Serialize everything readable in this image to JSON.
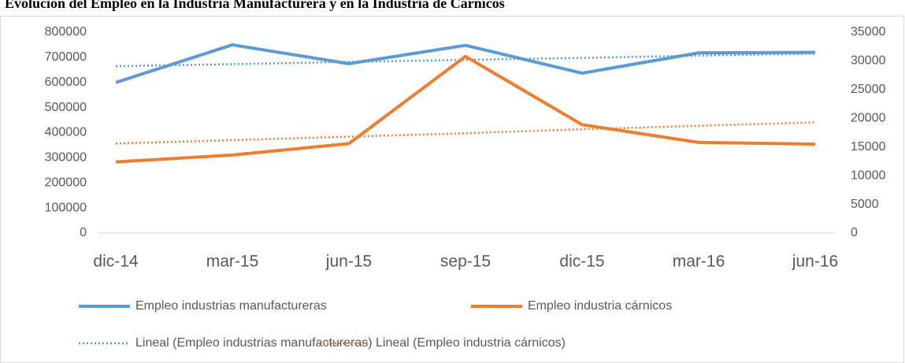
{
  "chart_data": {
    "type": "line",
    "title": "Evolución del Empleo en la Industria Manufacturera y en la Industria de Cárnicos",
    "categories": [
      "dic-14",
      "mar-15",
      "jun-15",
      "sep-15",
      "dic-15",
      "mar-16",
      "jun-16"
    ],
    "series": [
      {
        "name": "Empleo industrias manufactureras",
        "color": "#5b9bd5",
        "style": "solid",
        "values": [
          600000,
          750000,
          675000,
          748000,
          637000,
          718000,
          720000
        ]
      },
      {
        "name": "Empleo industria cárnicos",
        "color": "#ed7d31",
        "style": "solid",
        "axis": "y2",
        "values": [
          12400,
          13600,
          15600,
          30800,
          18900,
          15800,
          15500
        ]
      },
      {
        "name": "Lineal (Empleo industrias manufactureras)",
        "color": "#5b9bd5",
        "style": "dotted",
        "values": [
          665000,
          673000,
          682000,
          690000,
          698000,
          707000,
          715000
        ]
      },
      {
        "name": "Lineal (Empleo industria cárnicos)",
        "color": "#ed7d31",
        "style": "dotted",
        "axis": "y2",
        "values": [
          15600,
          16200,
          16800,
          17400,
          18100,
          18700,
          19300
        ]
      }
    ],
    "ylim": [
      0,
      800000
    ],
    "yticks": [
      0,
      100000,
      200000,
      300000,
      400000,
      500000,
      600000,
      700000,
      800000
    ],
    "y2lim": [
      0,
      35000
    ],
    "y2ticks": [
      0,
      5000,
      10000,
      15000,
      20000,
      25000,
      30000,
      35000
    ],
    "grid": false,
    "legend": "bottom"
  }
}
